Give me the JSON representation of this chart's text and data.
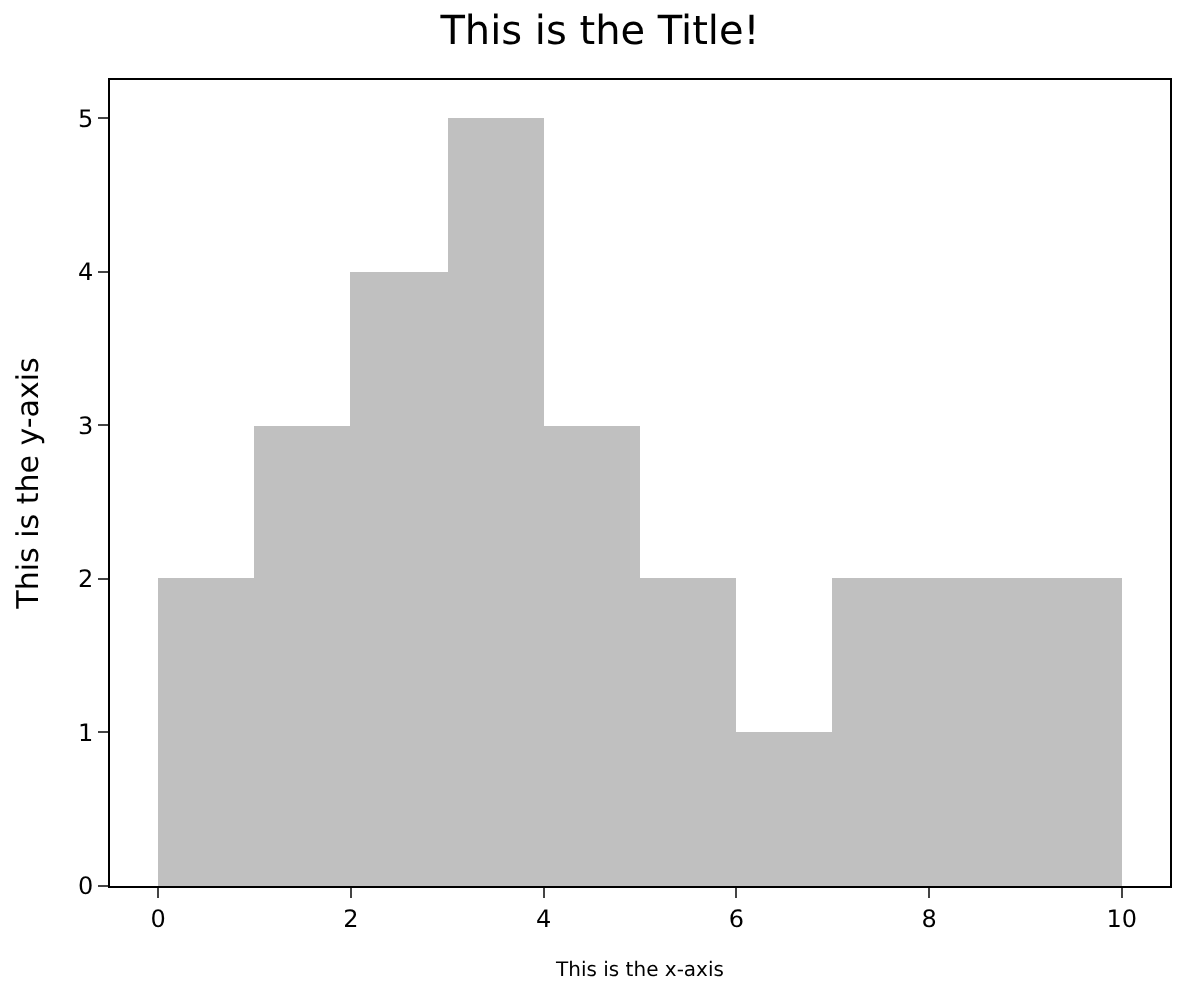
{
  "chart_data": {
    "type": "histogram",
    "title": "This is the Title!",
    "xlabel": "This is the x-axis",
    "ylabel": "This is the y-axis",
    "bins": [
      0,
      1,
      2,
      3,
      4,
      5,
      6,
      7,
      8,
      9,
      10
    ],
    "values": [
      2,
      3,
      4,
      5,
      3,
      2,
      1,
      2,
      2,
      2
    ],
    "color": "#c0c0c0",
    "xlim": [
      -0.5,
      10.5
    ],
    "xticks": [
      0,
      2,
      4,
      6,
      8,
      10
    ],
    "ylim": [
      0,
      5.25
    ],
    "yticks": [
      0,
      1,
      2,
      3,
      4,
      5
    ]
  }
}
